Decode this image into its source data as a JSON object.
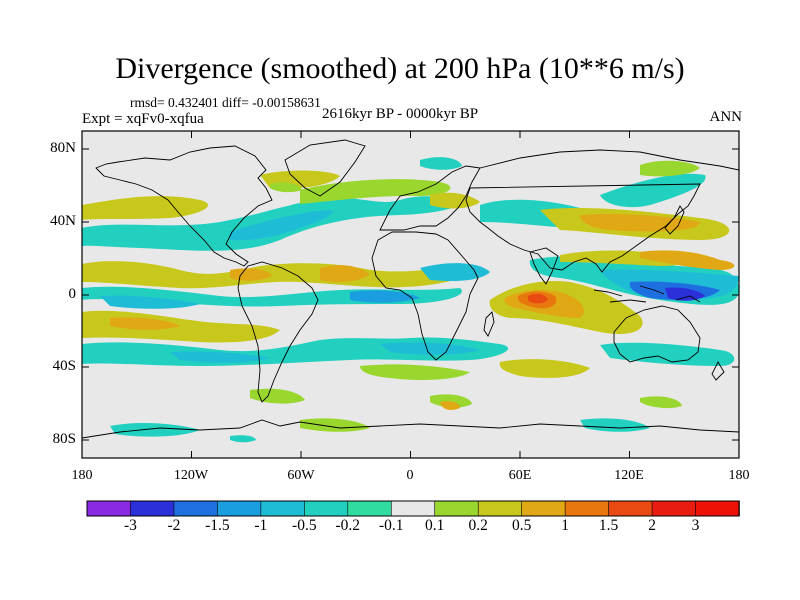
{
  "map": {
    "title": "Divergence (smoothed) at 200 hPa (10**6 m/s)",
    "stats": "rmsd= 0.432401 diff= -0.00158631",
    "experiment": "Expt = xqFv0-xqfua",
    "period": "2616kyr BP - 0000kyr BP",
    "season": "ANN",
    "lat_ticks": [
      "80N",
      "40N",
      "0",
      "40S",
      "80S"
    ],
    "lon_ticks": [
      "180",
      "120W",
      "60W",
      "0",
      "60E",
      "120E",
      "180"
    ],
    "background_color": "#e8e8e8"
  },
  "colorbar": {
    "labels": [
      "-3",
      "-2",
      "-1.5",
      "-1",
      "-0.5",
      "-0.2",
      "-0.1",
      "0.1",
      "0.2",
      "0.5",
      "1",
      "1.5",
      "2",
      "3"
    ],
    "colors": [
      "#8a2be2",
      "#2b30d8",
      "#1e6fe0",
      "#1a9ee0",
      "#1fbcd6",
      "#22d0c0",
      "#30dca0",
      "#e8e8e8",
      "#9ad72e",
      "#c8c81c",
      "#e0a814",
      "#e8780e",
      "#e84a12",
      "#e81c10",
      "#ee1108"
    ]
  }
}
